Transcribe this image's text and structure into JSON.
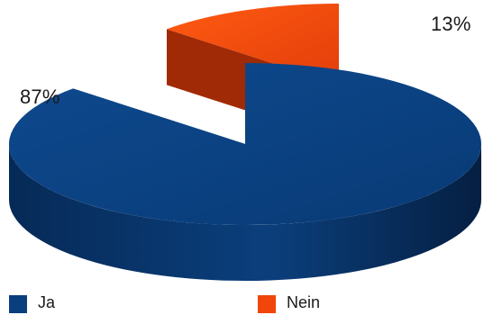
{
  "chart_data": {
    "type": "pie",
    "title": "",
    "categories": [
      "Ja",
      "Nein"
    ],
    "values": [
      87,
      13
    ],
    "unit": "%",
    "data_labels": [
      "87%",
      "13%"
    ],
    "colors": [
      "#0a3f7f",
      "#f2450b"
    ],
    "legend": {
      "position": "bottom",
      "entries": [
        "Ja",
        "Nein"
      ]
    },
    "style": "3d-exploded"
  }
}
